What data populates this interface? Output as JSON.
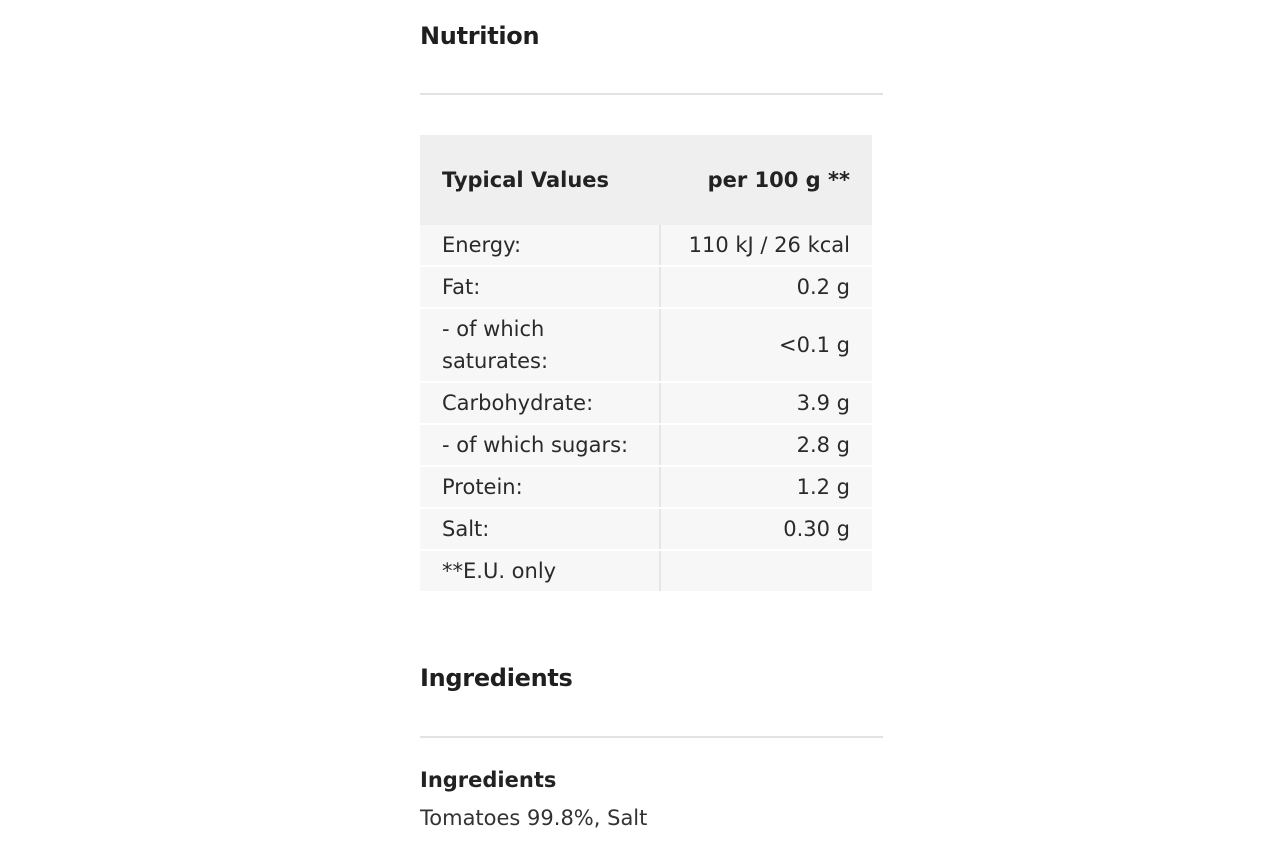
{
  "nutrition": {
    "title": "Nutrition",
    "table": {
      "header_label": "Typical Values",
      "header_value": "per 100 g **",
      "rows": [
        {
          "label": "Energy:",
          "value": "110 kJ / 26 kcal"
        },
        {
          "label": "Fat:",
          "value": "0.2 g"
        },
        {
          "label": "- of which saturates:",
          "value": "<0.1 g"
        },
        {
          "label": "Carbohydrate:",
          "value": "3.9 g"
        },
        {
          "label": "- of which sugars:",
          "value": "2.8 g"
        },
        {
          "label": "Protein:",
          "value": "1.2 g"
        },
        {
          "label": "Salt:",
          "value": "0.30 g"
        },
        {
          "label": "**E.U. only",
          "value": ""
        }
      ]
    }
  },
  "ingredients": {
    "title": "Ingredients",
    "subheading": "Ingredients",
    "text": "Tomatoes 99.8%, Salt"
  }
}
